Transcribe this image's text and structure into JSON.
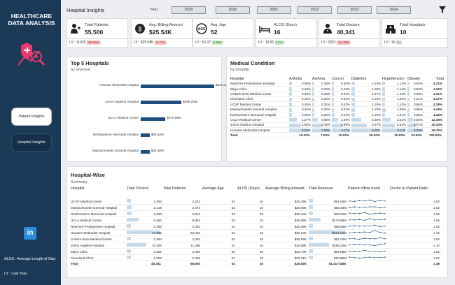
{
  "sidebar": {
    "brand_line1": "HEALTHCARE",
    "brand_line2": "DATA ANALYSIS",
    "nav_patient": "Patient Insights",
    "nav_hospital": "Hospital Insights",
    "linkedin_glyph": "in",
    "alos_note": "ALOS : Average Length of Stay",
    "ly_note": "LY : Last Year"
  },
  "header": {
    "title": "Hospital Insights",
    "year_label": "Year",
    "years": [
      "2019",
      "2020",
      "2021",
      "2022",
      "2023",
      "2024"
    ]
  },
  "kpis": [
    {
      "icon": "patients-icon",
      "label": "Total Patients",
      "value": "55,500",
      "ly": "LY : 11026",
      "change": "-65.05%",
      "trend": "neg"
    },
    {
      "icon": "billing-icon",
      "label": "Avg. Billing Amount",
      "value": "$25.54K",
      "ly": "LY : $25.58K",
      "change": "-0.71%",
      "trend": "neg"
    },
    {
      "icon": "age-icon",
      "label": "Avg. Age",
      "value": "52",
      "ly": "LY : 51.37",
      "change": "0.26%",
      "trend": "pos"
    },
    {
      "icon": "hospital-bed-icon",
      "label": "ALOS (Days)",
      "value": "16",
      "ly": "LY : 15.50",
      "change": "1.7%",
      "trend": "pos"
    },
    {
      "icon": "doctors-icon",
      "label": "Total Doctors",
      "value": "40,341",
      "ly": "LY : 9321",
      "change": "-63.28%",
      "trend": "neg"
    },
    {
      "icon": "hospital-icon",
      "label": "Total Hospitals",
      "value": "10",
      "ly": "LY : 10",
      "change": "NA",
      "trend": "neu"
    }
  ],
  "top5": {
    "title": "Top 5 Hospitals",
    "subtitle": "by revenue",
    "items": [
      {
        "name": "Houston Methodist Hospital",
        "value": 521.02,
        "label": "$521.02M"
      },
      {
        "name": "Johns Hopkins Hospital",
        "value": 288.23,
        "label": "$288.23M"
      },
      {
        "name": "UCLA Medical Center",
        "value": 175.86,
        "label": "$175.86M"
      },
      {
        "name": "Northwestern Memorial Hospital",
        "value": 63.62,
        "label": "$63.62M"
      },
      {
        "name": "Massachusetts General Hospital",
        "value": 63.48,
        "label": "$63.48M"
      }
    ]
  },
  "medical": {
    "title": "Medical Condition",
    "subtitle": "by hospital",
    "columns": [
      "Hospital",
      "Arthritis",
      "Asthma",
      "Cancer",
      "Diabetes",
      "Hypertension",
      "Obesity",
      "Total"
    ],
    "rows": [
      {
        "name": "NewYork-Presbyterian Hospital",
        "vals": [
          "0.45%",
          "0.28%",
          "0.38%",
          "1.03%",
          "1.12%",
          "0.93%",
          "4.21%"
        ],
        "nums": [
          0.45,
          0.28,
          0.38,
          1.03,
          1.12,
          0.93
        ]
      },
      {
        "name": "Mayo Clinic",
        "vals": [
          "0.43%",
          "0.29%",
          "0.43%",
          "1.10%",
          "1.14%",
          "0.92%",
          "4.32%"
        ],
        "nums": [
          0.43,
          0.29,
          0.43,
          1.1,
          1.14,
          0.92
        ]
      },
      {
        "name": "Cedars-Sinai Medical Center",
        "vals": [
          "0.42%",
          "0.28%",
          "0.43%",
          "1.07%",
          "1.13%",
          "0.99%",
          "4.31%"
        ],
        "nums": [
          0.42,
          0.28,
          0.43,
          1.07,
          1.13,
          0.99
        ]
      },
      {
        "name": "Cleveland Clinic",
        "vals": [
          "0.42%",
          "0.33%",
          "0.42%",
          "1.13%",
          "1.06%",
          "1.01%",
          "4.37%"
        ],
        "nums": [
          0.42,
          0.33,
          0.42,
          1.13,
          1.06,
          1.01
        ]
      },
      {
        "name": "UCSF Medical Center",
        "vals": [
          "0.45%",
          "0.31%",
          "0.42%",
          "1.10%",
          "1.14%",
          "0.96%",
          "4.38%"
        ],
        "nums": [
          0.45,
          0.31,
          0.42,
          1.1,
          1.14,
          0.96
        ]
      },
      {
        "name": "Massachusetts General Hospital",
        "vals": [
          "0.42%",
          "0.30%",
          "0.43%",
          "1.10%",
          "1.25%",
          "0.95%",
          "4.45%"
        ],
        "nums": [
          0.42,
          0.3,
          0.43,
          1.1,
          1.25,
          0.95
        ]
      },
      {
        "name": "Northwestern Memorial Hospital",
        "vals": [
          "0.46%",
          "0.29%",
          "0.44%",
          "1.10%",
          "1.21%",
          "0.96%",
          "4.46%"
        ],
        "nums": [
          0.46,
          0.29,
          0.44,
          1.1,
          1.21,
          0.96
        ]
      },
      {
        "name": "UCLA Medical Center",
        "vals": [
          "1.27%",
          "0.85%",
          "1.09%",
          "3.20%",
          "3.42%",
          "2.84%",
          "12.35%"
        ],
        "nums": [
          1.27,
          0.85,
          1.09,
          3.2,
          3.42,
          2.84
        ]
      },
      {
        "name": "Johns Hopkins Hospital",
        "vals": [
          "2.06%",
          "1.45%",
          "1.99%",
          "5.07%",
          "5.02%",
          "4.71%",
          "20.30%"
        ],
        "nums": [
          2.06,
          1.45,
          1.99,
          5.07,
          5.02,
          4.71
        ]
      },
      {
        "name": "Houston Methodist Hospital",
        "vals": [
          "3.60%",
          "2.59%",
          "3.17%",
          "9.20%",
          "9.11%",
          "8.09%",
          "36.76%"
        ],
        "nums": [
          3.6,
          2.59,
          3.17,
          9.2,
          9.11,
          8.09
        ]
      }
    ],
    "total": {
      "name": "Total",
      "vals": [
        "10.00%",
        "7.00%",
        "10.00%",
        "25.00%",
        "25.00%",
        "23.00%",
        "100.00%"
      ]
    }
  },
  "hospitalwise": {
    "title": "Hospital-Wise",
    "subtitle": "Summary",
    "columns": [
      "Hospital",
      "Total Doctors",
      "Total Patients",
      "Average Age",
      "ALOS (Days)",
      "Average Billing Amount",
      "Total Revenue",
      "Patient inflow trend",
      "Doctor to Patient Ratio"
    ],
    "rows": [
      {
        "name": "UCSF Medical Center",
        "doctors": "2,392",
        "patients": "2,432",
        "age": "52",
        "alos": "15",
        "billing": "$25.35K",
        "revenue": "$61.64M",
        "rev": 61.64,
        "ratio": "1.02",
        "docs": 2392,
        "trend": [
          5,
          4,
          6,
          5,
          7,
          4,
          6,
          5
        ]
      },
      {
        "name": "Massachusetts General Hospital",
        "doctors": "2,419",
        "patients": "2,472",
        "age": "52",
        "alos": "15",
        "billing": "$25.68K",
        "revenue": "$63.48M",
        "rev": 63.48,
        "ratio": "1.02",
        "docs": 2419,
        "trend": [
          4,
          6,
          5,
          5,
          6,
          6,
          4,
          5
        ]
      },
      {
        "name": "Northwestern Memorial Hospital",
        "doctors": "2,460",
        "patients": "2,510",
        "age": "52",
        "alos": "15",
        "billing": "$25.34K",
        "revenue": "$63.62M",
        "rev": 63.62,
        "ratio": "1.02",
        "docs": 2460,
        "trend": [
          6,
          5,
          5,
          7,
          4,
          5,
          6,
          5
        ]
      },
      {
        "name": "UCLA Medical Center",
        "doctors": "6,450",
        "patients": "6,853",
        "age": "52",
        "alos": "15",
        "billing": "$25.66K",
        "revenue": "$175.86M",
        "rev": 175.86,
        "ratio": "1.06",
        "docs": 6450,
        "trend": [
          5,
          5,
          6,
          4,
          8,
          5,
          5,
          6
        ]
      },
      {
        "name": "NewYork-Presbyterian Hospital",
        "doctors": "2,282",
        "patients": "2,334",
        "age": "51",
        "alos": "15",
        "billing": "$25.06K",
        "revenue": "$58.53M",
        "rev": 58.53,
        "ratio": "1.02",
        "docs": 2282,
        "trend": [
          5,
          6,
          5,
          5,
          5,
          7,
          4,
          5
        ]
      },
      {
        "name": "Houston Methodist Hospital",
        "doctors": "17,665",
        "patients": "20,402",
        "age": "52",
        "alos": "15",
        "billing": "$25.54K",
        "revenue": "$521.02M",
        "rev": 521.02,
        "ratio": "1.15",
        "docs": 17665,
        "trend": [
          4,
          5,
          5,
          6,
          5,
          9,
          5,
          4
        ]
      },
      {
        "name": "Cedars-Sinai Medical Center",
        "doctors": "2,364",
        "patients": "2,404",
        "age": "52",
        "alos": "15",
        "billing": "$25.88K",
        "revenue": "$62.22M",
        "rev": 62.22,
        "ratio": "1.02",
        "docs": 2364,
        "trend": [
          5,
          5,
          4,
          6,
          5,
          5,
          7,
          5
        ]
      },
      {
        "name": "Johns Hopkins Hospital",
        "doctors": "10,305",
        "patients": "11,288",
        "age": "51",
        "alos": "16",
        "billing": "$25.58K",
        "revenue": "$288.23M",
        "rev": 288.23,
        "ratio": "1.10",
        "docs": 10305,
        "trend": [
          5,
          6,
          6,
          5,
          5,
          4,
          6,
          8
        ]
      },
      {
        "name": "Mayo Clinic",
        "doctors": "2,351",
        "patients": "2,400",
        "age": "52",
        "alos": "15",
        "billing": "$25.70K",
        "revenue": "$61.68M",
        "rev": 61.68,
        "ratio": "1.02",
        "docs": 2351,
        "trend": [
          5,
          4,
          5,
          7,
          5,
          5,
          4,
          5
        ]
      },
      {
        "name": "Cleveland Clinic",
        "doctors": "2,365",
        "patients": "2,405",
        "age": "51",
        "alos": "15",
        "billing": "$25.31K",
        "revenue": "$60.88M",
        "rev": 60.88,
        "ratio": "1.02",
        "docs": 2365,
        "trend": [
          6,
          5,
          4,
          5,
          6,
          5,
          5,
          6
        ]
      }
    ],
    "total": {
      "name": "Total",
      "doctors": "40,341",
      "patients": "55,500",
      "age": "52",
      "alos": "16",
      "billing": "$25.54K",
      "revenue": "$1,417.54M",
      "ratio": "1.38"
    }
  },
  "colors": {
    "sidebar_bg": "#1b3a57",
    "bar": "#1e4f7a",
    "cell_bar": "#c4d9ea",
    "neg": "#f3c3c3",
    "pos": "#c7e8c7"
  }
}
